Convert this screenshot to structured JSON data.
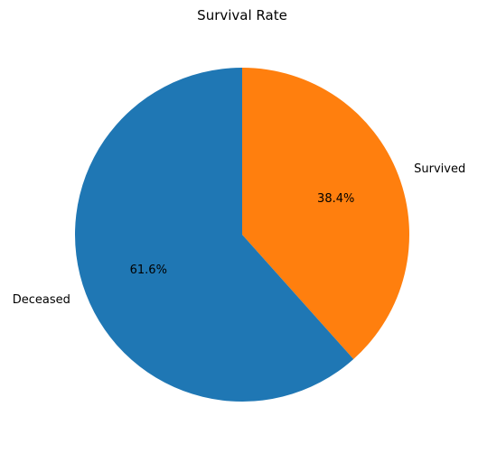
{
  "chart_data": {
    "type": "pie",
    "title": "Survival Rate",
    "start_angle_deg": 90,
    "direction": "clockwise",
    "slices": [
      {
        "label": "Survived",
        "value": 38.4,
        "pct_label": "38.4%",
        "color": "#ff7f0e"
      },
      {
        "label": "Deceased",
        "value": 61.6,
        "pct_label": "61.6%",
        "color": "#1f77b4"
      }
    ]
  }
}
